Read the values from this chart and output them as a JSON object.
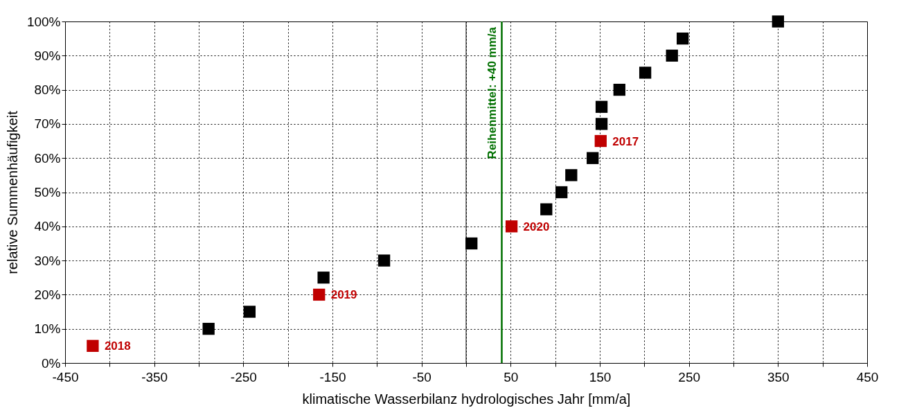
{
  "chart_data": {
    "type": "scatter",
    "xlabel": "klimatische Wasserbilanz hydrologisches Jahr [mm/a]",
    "ylabel": "relative Summenhäufigkeit",
    "series": [
      {
        "color": "#000000",
        "x": [
          -289,
          -243,
          -160,
          -92,
          6,
          90,
          107,
          118,
          142,
          152,
          152,
          172,
          201,
          231,
          243,
          350
        ],
        "values": [
          10,
          15,
          25,
          30,
          35,
          45,
          50,
          55,
          60,
          70,
          75,
          80,
          85,
          90,
          95,
          100
        ]
      },
      {
        "color": "#c00000",
        "x": [
          -419,
          -165,
          51,
          151
        ],
        "values": [
          5,
          20,
          40,
          65
        ]
      }
    ],
    "marker": "square",
    "grid": true,
    "legend": false,
    "xlim": [
      -450,
      450
    ],
    "xticks": [
      -450,
      {
        "value": -400,
        "label": null
      },
      -350,
      {
        "value": -300,
        "label": null
      },
      -250,
      {
        "value": -200,
        "label": null
      },
      -150,
      {
        "value": -100,
        "label": null
      },
      -50,
      {
        "value": 0,
        "label": null
      },
      50,
      {
        "value": 100,
        "label": null
      },
      150,
      {
        "value": 200,
        "label": null
      },
      250,
      {
        "value": 300,
        "label": null
      },
      350,
      {
        "value": 400,
        "label": null
      },
      450
    ],
    "ylim": [
      0,
      100
    ],
    "yticks": [
      {
        "value": 0,
        "label": "0%"
      },
      {
        "value": 10,
        "label": "10%"
      },
      {
        "value": 20,
        "label": "20%"
      },
      {
        "value": 30,
        "label": "30%"
      },
      {
        "value": 40,
        "label": "40%"
      },
      {
        "value": 50,
        "label": "50%"
      },
      {
        "value": 60,
        "label": "60%"
      },
      {
        "value": 70,
        "label": "70%"
      },
      {
        "value": 80,
        "label": "80%"
      },
      {
        "value": 90,
        "label": "90%"
      },
      {
        "value": 100,
        "label": "100%"
      }
    ],
    "ref_lines": [
      {
        "axis": "x",
        "value": 0,
        "color": "#000000"
      },
      {
        "axis": "x",
        "value": 40,
        "label": "Reihenmittel: +40 mm/a",
        "color": "#007000"
      }
    ],
    "annotations": [
      {
        "text": "2018",
        "x": -419,
        "y": 5
      },
      {
        "text": "2019",
        "x": -165,
        "y": 20
      },
      {
        "text": "2020",
        "x": 51,
        "y": 40
      },
      {
        "text": "2017",
        "x": 151,
        "y": 65
      }
    ]
  }
}
